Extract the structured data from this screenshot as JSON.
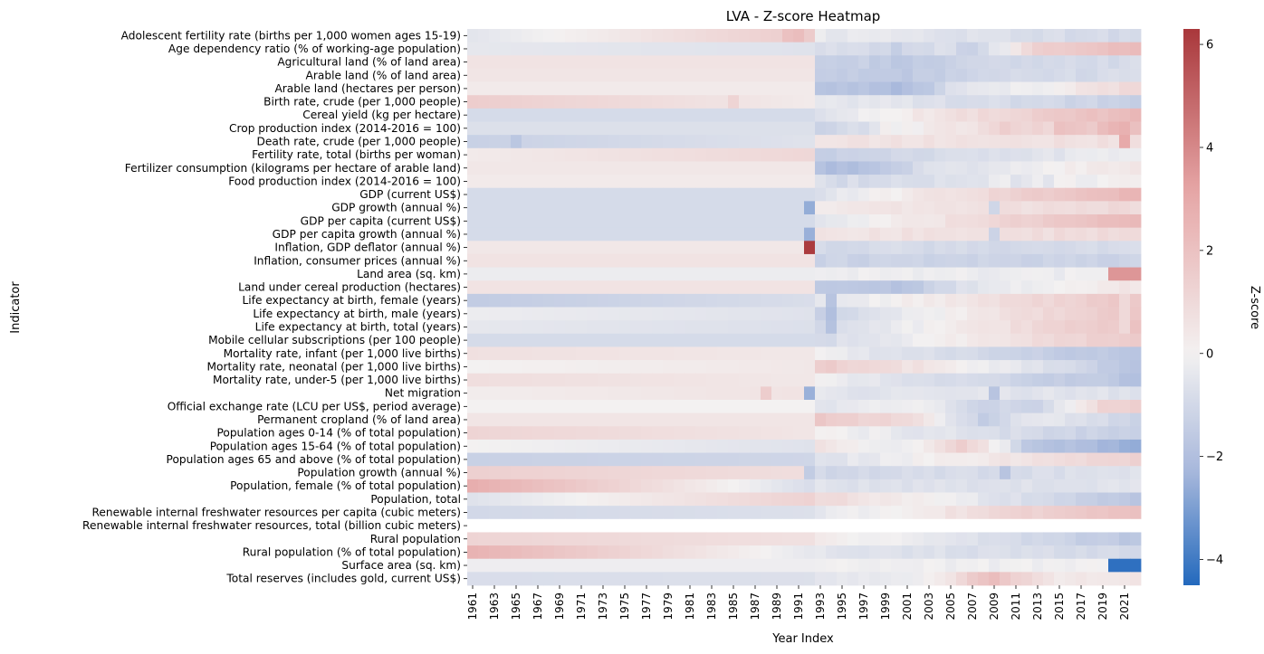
{
  "chart_data": {
    "type": "heatmap",
    "title": "LVA - Z-score Heatmap",
    "xlabel": "Year Index",
    "ylabel": "Indicator",
    "colorbar_label": "Z-score",
    "colorbar_range": [
      -4.5,
      6.3
    ],
    "colorbar_ticks": [
      -4,
      -2,
      0,
      2,
      4,
      6
    ],
    "colormap": "vlag",
    "colormap_stops": [
      "#2369bd",
      "#a9b9dc",
      "#f3f1f1",
      "#e6a6a6",
      "#a9373b"
    ],
    "x_ticks": [
      "1961",
      "1963",
      "1965",
      "1967",
      "1969",
      "1971",
      "1973",
      "1975",
      "1977",
      "1979",
      "1981",
      "1983",
      "1985",
      "1987",
      "1989",
      "1991",
      "1993",
      "1995",
      "1997",
      "1999",
      "2001",
      "2003",
      "2005",
      "2007",
      "2009",
      "2011",
      "2013",
      "2015",
      "2017",
      "2019",
      "2021"
    ],
    "years": {
      "start": 1961,
      "end": 2022
    },
    "indicators": [
      "Adolescent fertility rate (births per 1,000 women ages 15-19)",
      "Age dependency ratio (% of working-age population)",
      "Agricultural land (% of land area)",
      "Arable land (% of land area)",
      "Arable land (hectares per person)",
      "Birth rate, crude (per 1,000 people)",
      "Cereal yield (kg per hectare)",
      "Crop production index (2014-2016 = 100)",
      "Death rate, crude (per 1,000 people)",
      "Fertility rate, total (births per woman)",
      "Fertilizer consumption (kilograms per hectare of arable land)",
      "Food production index (2014-2016 = 100)",
      "GDP (current US$)",
      "GDP growth (annual %)",
      "GDP per capita (current US$)",
      "GDP per capita growth (annual %)",
      "Inflation, GDP deflator (annual %)",
      "Inflation, consumer prices (annual %)",
      "Land area (sq. km)",
      "Land under cereal production (hectares)",
      "Life expectancy at birth, female (years)",
      "Life expectancy at birth, male (years)",
      "Life expectancy at birth, total (years)",
      "Mobile cellular subscriptions (per 100 people)",
      "Mortality rate, infant (per 1,000 live births)",
      "Mortality rate, neonatal (per 1,000 live births)",
      "Mortality rate, under-5 (per 1,000 live births)",
      "Net migration",
      "Official exchange rate (LCU per US$, period average)",
      "Permanent cropland (% of land area)",
      "Population ages 0-14 (% of total population)",
      "Population ages 15-64 (% of total population)",
      "Population ages 65 and above (% of total population)",
      "Population growth (annual %)",
      "Population, female (% of total population)",
      "Population, total",
      "Renewable internal freshwater resources per capita (cubic meters)",
      "Renewable internal freshwater resources, total (billion cubic meters)",
      "Rural population",
      "Rural population (% of total population)",
      "Surface area (sq. km)",
      "Total reserves (includes gold, current US$)"
    ],
    "row_profiles": [
      {
        "pre": [
          -0.5,
          1.6
        ],
        "post": [
          -0.3,
          -1.0
        ],
        "special": {
          "1990": 2.0,
          "1991": 2.2
        }
      },
      {
        "pre": [
          -0.4,
          -0.6
        ],
        "post": [
          -0.8,
          2.4
        ],
        "mid": {
          "2000": -1.3,
          "2007": -1.4
        }
      },
      {
        "pre": [
          0.6,
          0.6
        ],
        "post": [
          -1.3,
          -0.9
        ],
        "mid": {
          "2001": -1.6
        }
      },
      {
        "pre": [
          0.5,
          0.5
        ],
        "post": [
          -1.4,
          -0.8
        ],
        "mid": {
          "2000": -1.7
        }
      },
      {
        "pre": [
          0.3,
          0.3
        ],
        "post": [
          -1.9,
          1.0
        ],
        "mid": {
          "2000": -2.1,
          "2010": -0.3
        }
      },
      {
        "pre": [
          1.5,
          0.3
        ],
        "post": [
          -0.3,
          -1.3
        ],
        "special": {
          "1985": 1.2
        }
      },
      {
        "pre": [
          -0.9,
          -0.9
        ],
        "post": [
          -0.5,
          2.3
        ]
      },
      {
        "pre": [
          -0.7,
          -0.7
        ],
        "post": [
          -0.9,
          2.4
        ],
        "noise": 1.0
      },
      {
        "pre": [
          -1.3,
          -0.6
        ],
        "post": [
          0.6,
          0.7
        ],
        "special": {
          "1965": -1.7,
          "2021": 3.0
        }
      },
      {
        "pre": [
          0.3,
          1.1
        ],
        "post": [
          -1.3,
          -0.2
        ]
      },
      {
        "pre": [
          0.4,
          0.4
        ],
        "post": [
          -1.5,
          0.6
        ],
        "mid": {
          "1995": -2.2,
          "1996": -2.0
        }
      },
      {
        "pre": [
          0.3,
          0.3
        ],
        "post": [
          -0.9,
          0.0
        ],
        "noise": 0.6
      },
      {
        "pre": [
          -0.9,
          -0.9
        ],
        "post": [
          -0.6,
          2.5
        ]
      },
      {
        "pre": [
          -0.9,
          -0.9
        ],
        "post": [
          0.4,
          1.0
        ],
        "special": {
          "1992": -2.6,
          "2009": -1.1
        }
      },
      {
        "pre": [
          -0.9,
          -0.9
        ],
        "post": [
          -0.6,
          2.5
        ]
      },
      {
        "pre": [
          -0.9,
          -0.9
        ],
        "post": [
          0.5,
          1.0
        ],
        "special": {
          "1992": -2.5,
          "2009": -1.2
        }
      },
      {
        "pre": [
          0.4,
          0.4
        ],
        "post": [
          -0.9,
          -0.9
        ],
        "special": {
          "1992": 6.2
        }
      },
      {
        "pre": [
          0.6,
          0.6
        ],
        "post": [
          -1.2,
          -1.2
        ],
        "special": {
          "1992": 0.6
        }
      },
      {
        "pre": [
          -0.2,
          -0.2
        ],
        "post": [
          -0.2,
          -0.2
        ],
        "special": {
          "2020": 3.6,
          "2021": 3.6,
          "2022": 3.6
        }
      },
      {
        "pre": [
          0.6,
          0.6
        ],
        "post": [
          -1.6,
          0.5
        ],
        "mid": {
          "2000": -1.8
        }
      },
      {
        "pre": [
          -1.5,
          -0.8
        ],
        "post": [
          -0.5,
          1.8
        ],
        "special": {
          "1994": -1.8,
          "2021": 1.0
        }
      },
      {
        "pre": [
          -0.2,
          -0.6
        ],
        "post": [
          -1.2,
          1.9
        ],
        "special": {
          "1994": -2.0,
          "2021": 1.0
        }
      },
      {
        "pre": [
          -0.4,
          -0.7
        ],
        "post": [
          -1.0,
          1.9
        ],
        "special": {
          "1994": -1.9,
          "2021": 1.0
        }
      },
      {
        "pre": [
          -0.9,
          -0.9
        ],
        "post": [
          -0.9,
          1.7
        ]
      },
      {
        "pre": [
          0.7,
          0.4
        ],
        "post": [
          -0.2,
          -1.8
        ]
      },
      {
        "pre": [
          0.0,
          0.4
        ],
        "post": [
          1.6,
          -1.7
        ]
      },
      {
        "pre": [
          0.8,
          0.4
        ],
        "post": [
          -0.2,
          -1.8
        ]
      },
      {
        "pre": [
          0.2,
          0.6
        ],
        "post": [
          -0.5,
          -0.6
        ],
        "special": {
          "1988": 1.5,
          "1992": -2.5,
          "2009": -1.8
        }
      },
      {
        "pre": [
          0.0,
          0.0
        ],
        "post": [
          -0.6,
          1.5
        ],
        "mid": {
          "2008": -1.4,
          "2013": -1.3
        }
      },
      {
        "pre": [
          0.5,
          0.5
        ],
        "post": [
          1.7,
          -1.2
        ],
        "mid": {
          "2008": -1.4
        }
      },
      {
        "pre": [
          1.2,
          0.5
        ],
        "post": [
          0.0,
          -1.4
        ]
      },
      {
        "pre": [
          0.0,
          -0.6
        ],
        "post": [
          0.5,
          -2.6
        ],
        "mid": {
          "2006": 1.5
        }
      },
      {
        "pre": [
          -1.3,
          -1.1
        ],
        "post": [
          -0.6,
          1.3
        ]
      },
      {
        "pre": [
          1.4,
          0.8
        ],
        "post": [
          -1.0,
          -0.7
        ],
        "special": {
          "1992": -1.5,
          "2010": -1.8
        }
      },
      {
        "pre": [
          2.8,
          -0.8
        ],
        "post": [
          -0.6,
          -0.6
        ],
        "mid": {
          "1985": -1.3
        }
      },
      {
        "pre": [
          -0.6,
          1.3
        ],
        "post": [
          1.0,
          -1.8
        ]
      },
      {
        "pre": [
          -1.0,
          -0.7
        ],
        "post": [
          -0.5,
          2.2
        ]
      },
      {
        "pre": [
          0.0,
          0.0
        ],
        "post": [
          0.0,
          0.0
        ],
        "blank": true
      },
      {
        "pre": [
          1.2,
          0.7
        ],
        "post": [
          0.3,
          -1.7
        ]
      },
      {
        "pre": [
          2.6,
          -0.4
        ],
        "post": [
          -0.5,
          -1.0
        ]
      },
      {
        "pre": [
          -0.15,
          -0.15
        ],
        "post": [
          -0.15,
          -0.15
        ],
        "special": {
          "2020": -4.3,
          "2021": -4.3,
          "2022": -4.3
        }
      },
      {
        "pre": [
          -0.8,
          -0.7
        ],
        "post": [
          -0.4,
          0.5
        ],
        "mid": {
          "2009": 2.1,
          "2012": 2.0,
          "2015": 0.4
        }
      }
    ]
  }
}
